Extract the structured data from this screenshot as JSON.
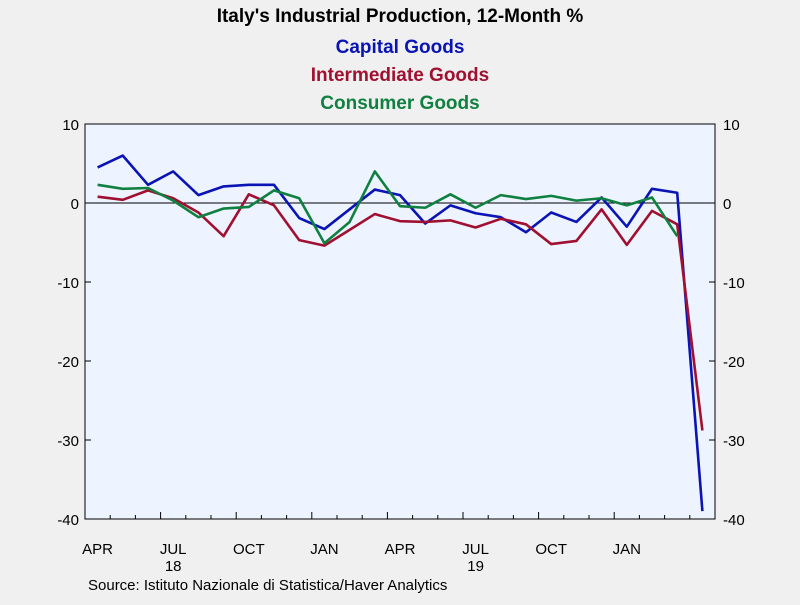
{
  "chart_data": {
    "type": "line",
    "title": "Italy's Industrial Production, 12-Month %",
    "xlabel": "",
    "ylabel": "",
    "ylim": [
      -40,
      10
    ],
    "yticks": [
      10,
      0,
      -10,
      -20,
      -30,
      -40
    ],
    "grid": false,
    "legend_position": "top-center",
    "x_tick_labels": [
      {
        "label": "APR",
        "year": "",
        "index": 0
      },
      {
        "label": "JUL",
        "year": "18",
        "index": 3
      },
      {
        "label": "OCT",
        "year": "",
        "index": 6
      },
      {
        "label": "JAN",
        "year": "",
        "index": 9
      },
      {
        "label": "APR",
        "year": "",
        "index": 12
      },
      {
        "label": "JUL",
        "year": "19",
        "index": 15
      },
      {
        "label": "OCT",
        "year": "",
        "index": 18
      },
      {
        "label": "JAN",
        "year": "",
        "index": 21
      }
    ],
    "x": [
      "2018-03",
      "2018-04",
      "2018-05",
      "2018-06",
      "2018-07",
      "2018-08",
      "2018-09",
      "2018-10",
      "2018-11",
      "2018-12",
      "2019-01",
      "2019-02",
      "2019-03",
      "2019-04",
      "2019-05",
      "2019-06",
      "2019-07",
      "2019-08",
      "2019-09",
      "2019-10",
      "2019-11",
      "2019-12",
      "2020-01",
      "2020-02",
      "2020-03"
    ],
    "series": [
      {
        "name": "Capital Goods",
        "color": "#0a14b4",
        "values": [
          4.5,
          6.0,
          2.3,
          4.0,
          1.0,
          2.1,
          2.3,
          2.3,
          -1.9,
          -3.3,
          -0.8,
          1.7,
          1.0,
          -2.6,
          -0.3,
          -1.3,
          -1.8,
          -3.7,
          -1.2,
          -2.4,
          0.7,
          -3.0,
          1.8,
          1.3,
          -39.0
        ]
      },
      {
        "name": "Intermediate Goods",
        "color": "#a01030",
        "values": [
          0.8,
          0.4,
          1.6,
          0.6,
          -1.2,
          -4.2,
          1.1,
          -0.3,
          -4.7,
          -5.4,
          -3.4,
          -1.4,
          -2.3,
          -2.4,
          -2.2,
          -3.1,
          -2.0,
          -2.7,
          -5.2,
          -4.8,
          -0.8,
          -5.3,
          -1.0,
          -2.7,
          -28.8
        ]
      },
      {
        "name": "Consumer Goods",
        "color": "#108040",
        "values": [
          2.3,
          1.8,
          1.9,
          0.3,
          -1.8,
          -0.7,
          -0.5,
          1.6,
          0.6,
          -5.1,
          -2.4,
          4.0,
          -0.4,
          -0.6,
          1.1,
          -0.6,
          1.0,
          0.5,
          0.9,
          0.3,
          0.6,
          -0.3,
          0.7,
          -4.2,
          null
        ]
      }
    ]
  },
  "source_text": "Source:  Istituto Nazionale di Statistica/Haver Analytics",
  "colors": {
    "background": "#f0f0f0",
    "plot_background": "#eef4ff",
    "title": "#000000"
  }
}
